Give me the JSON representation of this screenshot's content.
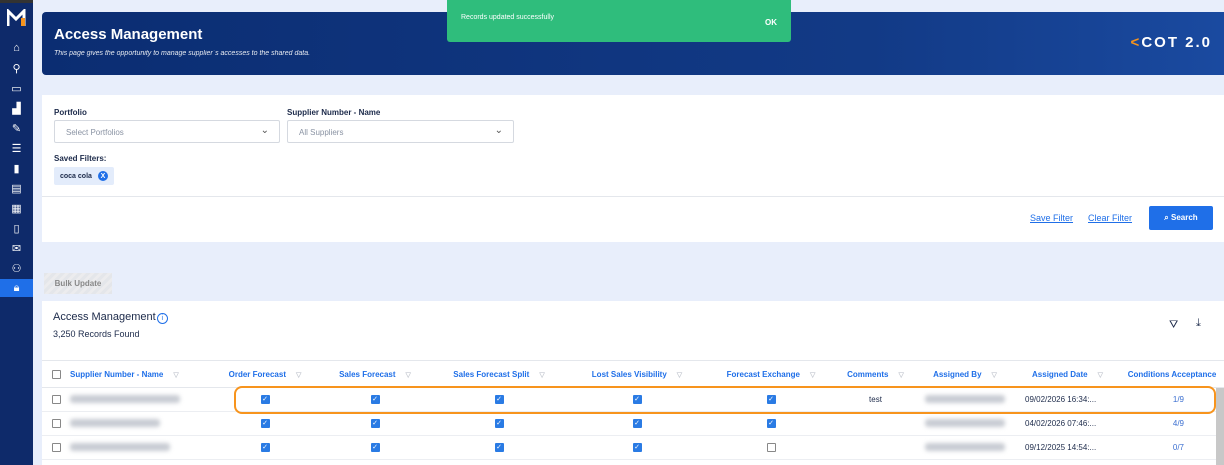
{
  "sidebar": {
    "items": [
      "home",
      "search-chart",
      "folder-image",
      "bar-chart",
      "edit-doc",
      "list",
      "bars",
      "doc-gear",
      "calculator",
      "report",
      "mail",
      "users",
      "lock"
    ],
    "active": "lock"
  },
  "toast": {
    "message": "Records updated successfully",
    "ok": "OK",
    "color": "#2fbd7c"
  },
  "banner": {
    "title": "Access Management",
    "subtitle": "This page gives the opportunity to manage supplier`s accesses to the shared data.",
    "brand_pre": "<",
    "brand_mid": "COT 2.0"
  },
  "filters": {
    "portfolio_label": "Portfolio",
    "portfolio_placeholder": "Select Portfolios",
    "supplier_label": "Supplier Number - Name",
    "supplier_placeholder": "All Suppliers",
    "saved_label": "Saved Filters:",
    "saved_chip": "coca cola",
    "chip_remove": "X",
    "save_filter": "Save Filter",
    "clear_filter": "Clear Filter",
    "search": "Search"
  },
  "bulk_update": "Bulk Update",
  "table": {
    "title": "Access Management",
    "count": "3,250 Records Found",
    "columns": [
      "Supplier Number - Name",
      "Order Forecast",
      "Sales Forecast",
      "Sales Forecast Split",
      "Lost Sales Visibility",
      "Forecast Exchange",
      "Comments",
      "Assigned By",
      "Assigned Date",
      "Conditions Acceptance"
    ],
    "rows": [
      {
        "checks": [
          true,
          true,
          true,
          true,
          true
        ],
        "comment": "test",
        "date": "09/02/2026 16:34:...",
        "conditions": "1/9",
        "highlighted": true
      },
      {
        "checks": [
          true,
          true,
          true,
          true,
          true
        ],
        "comment": "",
        "date": "04/02/2026 07:46:...",
        "conditions": "4/9"
      },
      {
        "checks": [
          true,
          true,
          true,
          true,
          false
        ],
        "comment": "",
        "date": "09/12/2025 14:54:...",
        "conditions": "0/7"
      }
    ]
  },
  "colors": {
    "accent": "#1f6fe8",
    "highlight": "#f7941d",
    "navy": "#0e2a6a"
  }
}
